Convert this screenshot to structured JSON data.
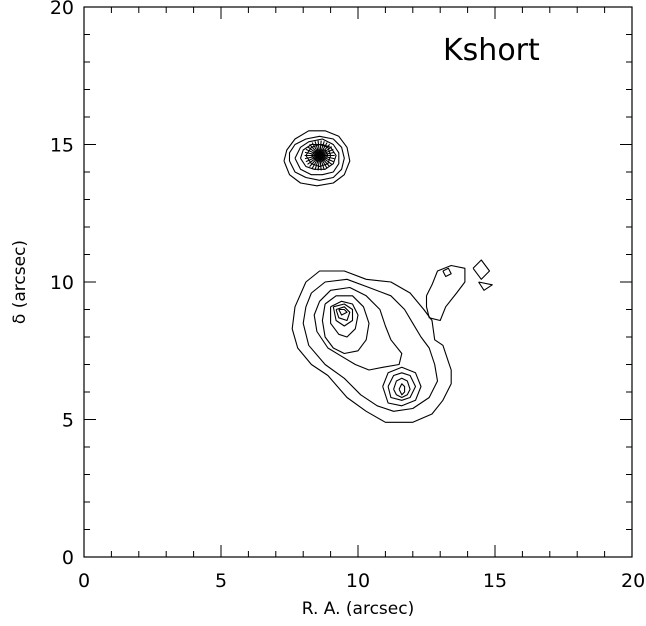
{
  "chart_data": {
    "type": "contour",
    "panel_label": "Kshort",
    "xlabel": "R. A. (arcsec)",
    "ylabel": "δ (arcsec)",
    "xlim": [
      0,
      20
    ],
    "ylim": [
      0,
      20
    ],
    "x_ticks": [
      0,
      5,
      10,
      15,
      20
    ],
    "y_ticks": [
      0,
      5,
      10,
      15,
      20
    ],
    "x_tick_labels": [
      "0",
      "5",
      "10",
      "15",
      "20"
    ],
    "y_tick_labels": [
      "0",
      "5",
      "10",
      "15",
      "20"
    ],
    "minor_tick_step": 1,
    "grid": false,
    "sources": [
      {
        "id": "compact-source",
        "center": [
          8.6,
          14.6
        ],
        "contours": [
          [
            [
              7.3,
              14.4
            ],
            [
              7.5,
              13.9
            ],
            [
              7.9,
              13.6
            ],
            [
              8.5,
              13.5
            ],
            [
              9.1,
              13.6
            ],
            [
              9.5,
              13.9
            ],
            [
              9.7,
              14.4
            ],
            [
              9.6,
              14.9
            ],
            [
              9.3,
              15.3
            ],
            [
              8.8,
              15.5
            ],
            [
              8.2,
              15.5
            ],
            [
              7.7,
              15.2
            ],
            [
              7.4,
              14.8
            ],
            [
              7.3,
              14.4
            ]
          ],
          [
            [
              7.5,
              14.4
            ],
            [
              7.7,
              14.0
            ],
            [
              8.1,
              13.8
            ],
            [
              8.6,
              13.7
            ],
            [
              9.1,
              13.8
            ],
            [
              9.4,
              14.1
            ],
            [
              9.5,
              14.5
            ],
            [
              9.4,
              14.9
            ],
            [
              9.1,
              15.2
            ],
            [
              8.6,
              15.3
            ],
            [
              8.1,
              15.2
            ],
            [
              7.7,
              15.0
            ],
            [
              7.5,
              14.7
            ],
            [
              7.5,
              14.4
            ]
          ],
          [
            [
              7.7,
              14.5
            ],
            [
              7.9,
              14.1
            ],
            [
              8.3,
              13.9
            ],
            [
              8.7,
              13.9
            ],
            [
              9.1,
              14.0
            ],
            [
              9.3,
              14.3
            ],
            [
              9.3,
              14.7
            ],
            [
              9.1,
              15.0
            ],
            [
              8.7,
              15.2
            ],
            [
              8.2,
              15.1
            ],
            [
              7.9,
              14.9
            ],
            [
              7.7,
              14.5
            ]
          ],
          [
            [
              7.9,
              14.5
            ],
            [
              8.1,
              14.2
            ],
            [
              8.4,
              14.1
            ],
            [
              8.8,
              14.1
            ],
            [
              9.1,
              14.3
            ],
            [
              9.2,
              14.6
            ],
            [
              9.0,
              14.9
            ],
            [
              8.7,
              15.0
            ],
            [
              8.3,
              15.0
            ],
            [
              8.0,
              14.8
            ],
            [
              7.9,
              14.5
            ]
          ],
          [
            [
              8.1,
              14.6
            ],
            [
              8.3,
              14.3
            ],
            [
              8.6,
              14.2
            ],
            [
              8.9,
              14.3
            ],
            [
              9.0,
              14.6
            ],
            [
              8.9,
              14.9
            ],
            [
              8.6,
              15.0
            ],
            [
              8.3,
              14.9
            ],
            [
              8.1,
              14.6
            ]
          ],
          [
            [
              8.3,
              14.6
            ],
            [
              8.5,
              14.4
            ],
            [
              8.7,
              14.4
            ],
            [
              8.9,
              14.6
            ],
            [
              8.8,
              14.8
            ],
            [
              8.5,
              14.8
            ],
            [
              8.3,
              14.6
            ]
          ]
        ]
      },
      {
        "id": "extended-source",
        "center": [
          10.0,
          7.8
        ],
        "contours": [
          [
            [
              8.1,
              10.0
            ],
            [
              8.6,
              10.4
            ],
            [
              9.5,
              10.4
            ],
            [
              10.3,
              10.1
            ],
            [
              11.2,
              10.0
            ],
            [
              11.9,
              9.6
            ],
            [
              12.4,
              9.0
            ],
            [
              12.7,
              8.6
            ],
            [
              12.8,
              7.9
            ],
            [
              13.1,
              7.7
            ],
            [
              13.3,
              7.1
            ],
            [
              13.4,
              6.8
            ],
            [
              13.4,
              6.3
            ],
            [
              13.1,
              5.7
            ],
            [
              12.7,
              5.2
            ],
            [
              12.0,
              4.9
            ],
            [
              11.0,
              4.9
            ],
            [
              10.3,
              5.3
            ],
            [
              9.6,
              5.8
            ],
            [
              8.9,
              6.6
            ],
            [
              8.3,
              7.0
            ],
            [
              7.8,
              7.6
            ],
            [
              7.6,
              8.3
            ],
            [
              7.7,
              9.1
            ],
            [
              8.1,
              10.0
            ]
          ],
          [
            [
              8.3,
              9.6
            ],
            [
              8.8,
              10.0
            ],
            [
              9.6,
              10.1
            ],
            [
              10.4,
              9.8
            ],
            [
              11.2,
              9.5
            ],
            [
              11.7,
              9.0
            ],
            [
              12.0,
              8.5
            ],
            [
              12.3,
              8.0
            ],
            [
              12.6,
              7.6
            ],
            [
              12.8,
              7.0
            ],
            [
              12.9,
              6.4
            ],
            [
              12.6,
              5.8
            ],
            [
              12.0,
              5.4
            ],
            [
              11.3,
              5.3
            ],
            [
              10.7,
              5.5
            ],
            [
              10.1,
              5.9
            ],
            [
              9.5,
              6.5
            ],
            [
              8.8,
              7.0
            ],
            [
              8.2,
              7.7
            ],
            [
              8.0,
              8.5
            ],
            [
              8.1,
              9.1
            ],
            [
              8.3,
              9.6
            ]
          ],
          [
            [
              8.6,
              9.3
            ],
            [
              9.0,
              9.7
            ],
            [
              9.7,
              9.8
            ],
            [
              10.3,
              9.5
            ],
            [
              10.8,
              9.0
            ],
            [
              11.0,
              8.4
            ],
            [
              11.2,
              7.9
            ],
            [
              11.6,
              7.4
            ],
            [
              11.5,
              7.0
            ],
            [
              10.9,
              6.9
            ],
            [
              10.4,
              6.8
            ],
            [
              9.9,
              7.0
            ],
            [
              9.4,
              7.3
            ],
            [
              8.9,
              7.6
            ],
            [
              8.5,
              8.2
            ],
            [
              8.4,
              8.8
            ],
            [
              8.6,
              9.3
            ]
          ],
          [
            [
              8.8,
              9.2
            ],
            [
              9.2,
              9.5
            ],
            [
              9.8,
              9.5
            ],
            [
              10.2,
              9.1
            ],
            [
              10.4,
              8.5
            ],
            [
              10.3,
              7.9
            ],
            [
              10.0,
              7.5
            ],
            [
              9.5,
              7.4
            ],
            [
              9.1,
              7.6
            ],
            [
              8.8,
              8.0
            ],
            [
              8.7,
              8.6
            ],
            [
              8.8,
              9.2
            ]
          ],
          [
            [
              9.0,
              9.1
            ],
            [
              9.4,
              9.3
            ],
            [
              9.8,
              9.2
            ],
            [
              10.0,
              8.8
            ],
            [
              9.9,
              8.3
            ],
            [
              9.6,
              8.0
            ],
            [
              9.3,
              8.1
            ],
            [
              9.0,
              8.5
            ],
            [
              9.0,
              9.1
            ]
          ],
          [
            [
              9.1,
              9.1
            ],
            [
              9.5,
              9.2
            ],
            [
              9.8,
              9.0
            ],
            [
              9.8,
              8.6
            ],
            [
              9.5,
              8.4
            ],
            [
              9.2,
              8.6
            ],
            [
              9.1,
              9.1
            ]
          ],
          [
            [
              9.2,
              9.0
            ],
            [
              9.5,
              9.1
            ],
            [
              9.7,
              8.9
            ],
            [
              9.6,
              8.6
            ],
            [
              9.3,
              8.7
            ],
            [
              9.2,
              9.0
            ]
          ],
          [
            [
              9.3,
              9.0
            ],
            [
              9.5,
              9.0
            ],
            [
              9.6,
              8.9
            ],
            [
              9.4,
              8.8
            ],
            [
              9.3,
              9.0
            ]
          ],
          [
            [
              10.9,
              6.2
            ],
            [
              11.1,
              6.7
            ],
            [
              11.6,
              6.9
            ],
            [
              12.1,
              6.7
            ],
            [
              12.3,
              6.2
            ],
            [
              12.1,
              5.7
            ],
            [
              11.6,
              5.5
            ],
            [
              11.1,
              5.6
            ],
            [
              10.9,
              6.2
            ]
          ],
          [
            [
              11.1,
              6.2
            ],
            [
              11.3,
              6.6
            ],
            [
              11.6,
              6.7
            ],
            [
              11.9,
              6.6
            ],
            [
              12.1,
              6.2
            ],
            [
              11.9,
              5.8
            ],
            [
              11.6,
              5.7
            ],
            [
              11.2,
              5.8
            ],
            [
              11.1,
              6.2
            ]
          ],
          [
            [
              11.3,
              6.1
            ],
            [
              11.4,
              6.4
            ],
            [
              11.6,
              6.5
            ],
            [
              11.8,
              6.4
            ],
            [
              11.9,
              6.1
            ],
            [
              11.8,
              5.9
            ],
            [
              11.6,
              5.8
            ],
            [
              11.4,
              5.9
            ],
            [
              11.3,
              6.1
            ]
          ],
          [
            [
              11.5,
              6.1
            ],
            [
              11.6,
              6.3
            ],
            [
              11.7,
              6.2
            ],
            [
              11.7,
              6.0
            ],
            [
              11.6,
              5.9
            ],
            [
              11.5,
              6.1
            ]
          ],
          [
            [
              12.5,
              9.5
            ],
            [
              12.7,
              9.9
            ],
            [
              12.9,
              10.4
            ],
            [
              13.4,
              10.6
            ],
            [
              13.9,
              10.5
            ],
            [
              13.9,
              10.0
            ],
            [
              13.6,
              9.6
            ],
            [
              13.2,
              9.1
            ],
            [
              13.0,
              8.6
            ],
            [
              12.6,
              8.7
            ],
            [
              12.5,
              9.1
            ],
            [
              12.5,
              9.5
            ]
          ],
          [
            [
              13.1,
              10.4
            ],
            [
              13.3,
              10.5
            ],
            [
              13.4,
              10.3
            ],
            [
              13.2,
              10.2
            ],
            [
              13.1,
              10.4
            ]
          ],
          [
            [
              14.2,
              10.5
            ],
            [
              14.5,
              10.8
            ],
            [
              14.8,
              10.4
            ],
            [
              14.5,
              10.1
            ],
            [
              14.2,
              10.5
            ]
          ],
          [
            [
              14.4,
              10.0
            ],
            [
              14.9,
              9.9
            ],
            [
              14.6,
              9.7
            ],
            [
              14.4,
              10.0
            ]
          ]
        ]
      }
    ]
  }
}
